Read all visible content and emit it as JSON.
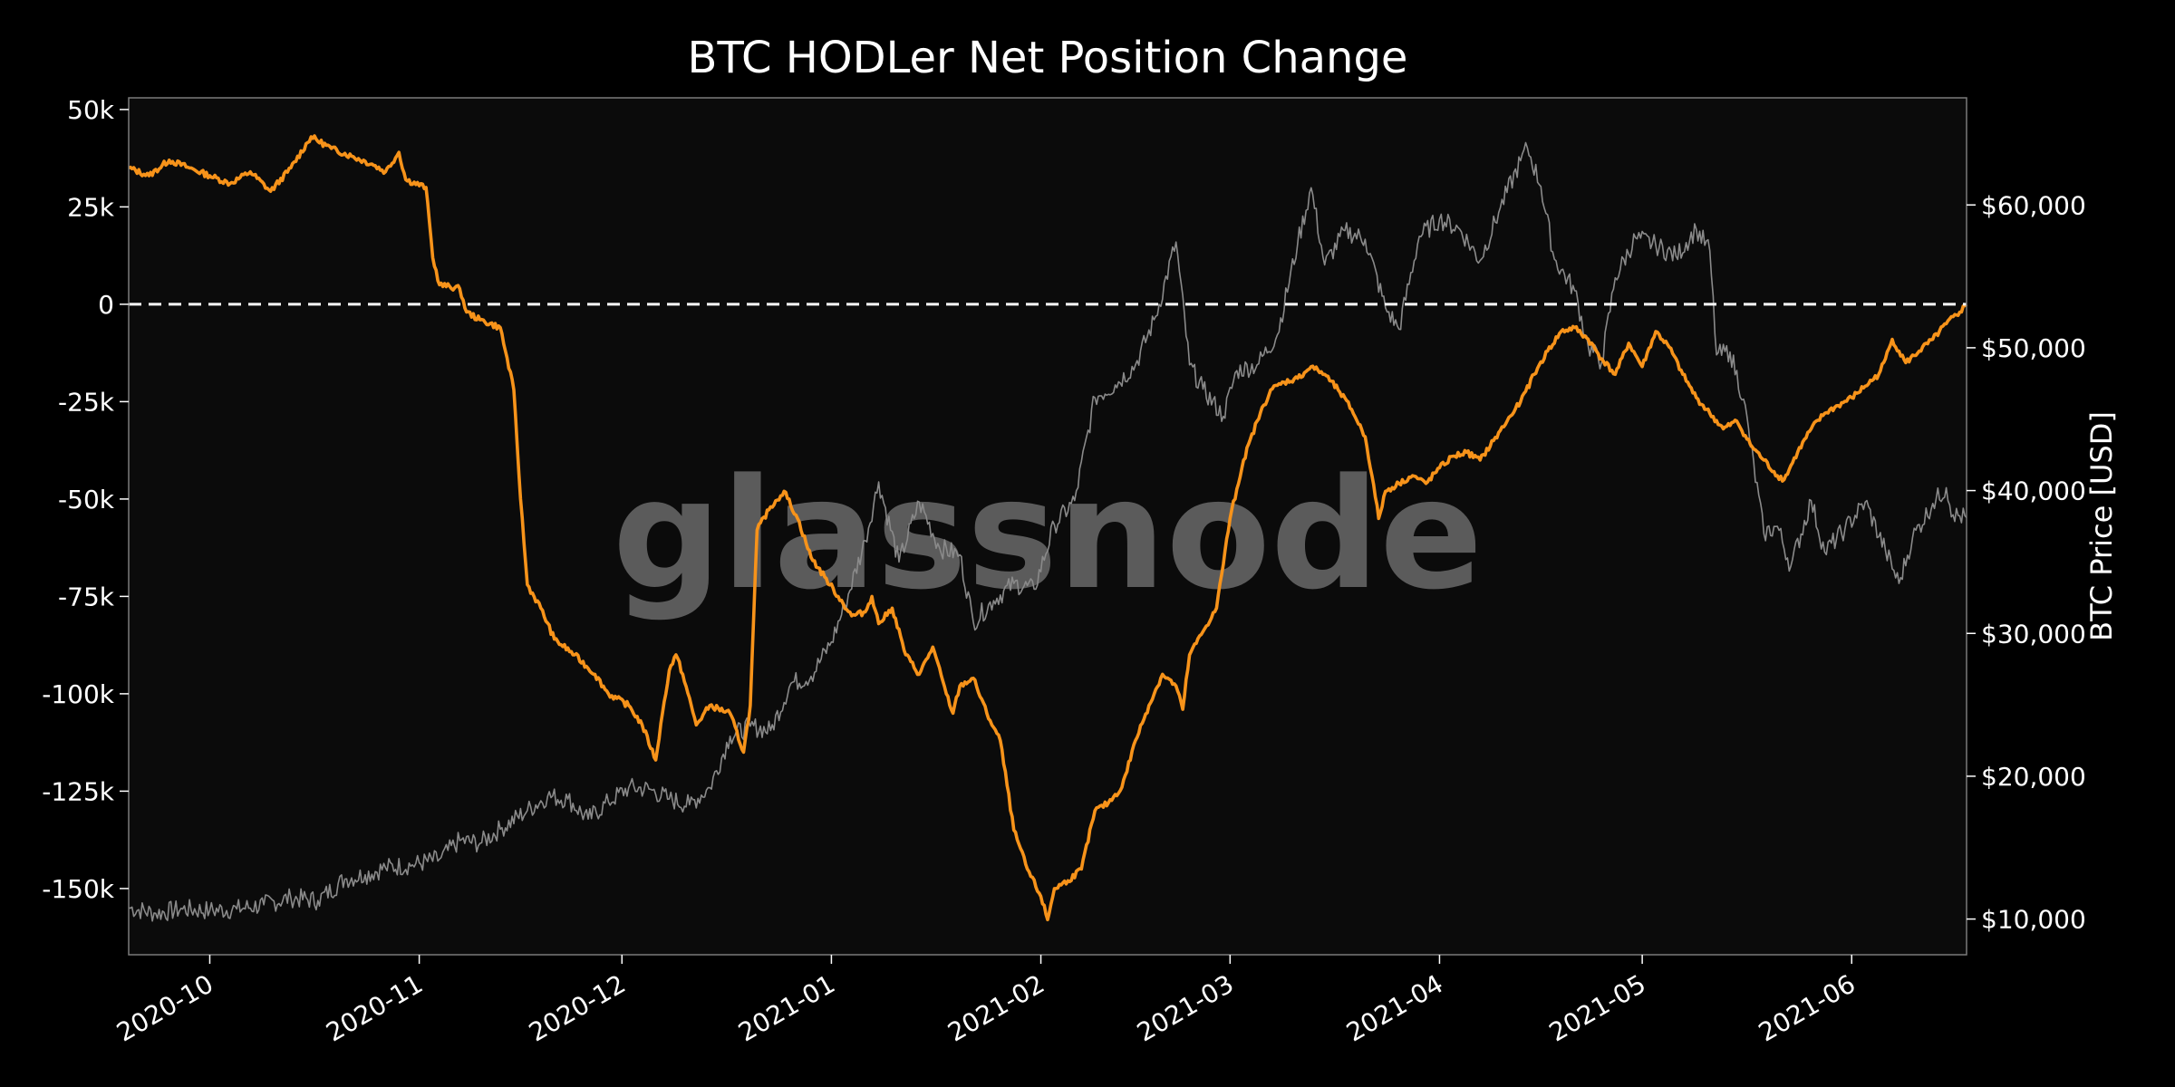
{
  "colors": {
    "background": "#0b0b0b",
    "frame": "#7a7a7a",
    "net_position_line": "#f7931a",
    "price_line": "#8a8a8a",
    "zero_line": "#ffffff",
    "text": "#ffffff"
  },
  "watermark": "glassnode",
  "chart_data": {
    "type": "line",
    "title": "BTC HODLer Net Position Change",
    "xlabel": "",
    "ylabel_left": "",
    "ylabel_right": "BTC Price [USD]",
    "xlim": [
      "2020-09-19",
      "2021-06-18"
    ],
    "ylim_left": [
      -167000,
      53000
    ],
    "ylim_right": [
      7500,
      67500
    ],
    "x_ticks": [
      "2020-10",
      "2020-11",
      "2020-12",
      "2021-01",
      "2021-02",
      "2021-03",
      "2021-04",
      "2021-05",
      "2021-06"
    ],
    "x_tick_dates": [
      "2020-10-01",
      "2020-11-01",
      "2020-12-01",
      "2021-01-01",
      "2021-02-01",
      "2021-03-01",
      "2021-04-01",
      "2021-05-01",
      "2021-06-01"
    ],
    "y_ticks_left": [
      {
        "value": 50000,
        "label": "50k"
      },
      {
        "value": 25000,
        "label": "25k"
      },
      {
        "value": 0,
        "label": "0"
      },
      {
        "value": -25000,
        "label": "-25k"
      },
      {
        "value": -50000,
        "label": "-50k"
      },
      {
        "value": -75000,
        "label": "-75k"
      },
      {
        "value": -100000,
        "label": "-100k"
      },
      {
        "value": -125000,
        "label": "-125k"
      },
      {
        "value": -150000,
        "label": "-150k"
      }
    ],
    "y_ticks_right": [
      {
        "value": 60000,
        "label": "$60,000"
      },
      {
        "value": 50000,
        "label": "$50,000"
      },
      {
        "value": 40000,
        "label": "$40,000"
      },
      {
        "value": 30000,
        "label": "$30,000"
      },
      {
        "value": 20000,
        "label": "$20,000"
      },
      {
        "value": 10000,
        "label": "$10,000"
      }
    ],
    "zero_line": {
      "value": 0,
      "style": "dashed"
    },
    "grid": false,
    "series": [
      {
        "axis": "left",
        "points": [
          [
            "2020-09-19",
            35000
          ],
          [
            "2020-09-22",
            33000
          ],
          [
            "2020-09-25",
            37000
          ],
          [
            "2020-09-28",
            35000
          ],
          [
            "2020-10-01",
            33000
          ],
          [
            "2020-10-04",
            31000
          ],
          [
            "2020-10-07",
            34000
          ],
          [
            "2020-10-10",
            29000
          ],
          [
            "2020-10-13",
            35000
          ],
          [
            "2020-10-16",
            43000
          ],
          [
            "2020-10-19",
            40000
          ],
          [
            "2020-10-22",
            38000
          ],
          [
            "2020-10-25",
            36000
          ],
          [
            "2020-10-27",
            34000
          ],
          [
            "2020-10-29",
            39000
          ],
          [
            "2020-10-30",
            32000
          ],
          [
            "2020-11-02",
            30000
          ],
          [
            "2020-11-03",
            12000
          ],
          [
            "2020-11-04",
            5000
          ],
          [
            "2020-11-07",
            4000
          ],
          [
            "2020-11-08",
            -2000
          ],
          [
            "2020-11-10",
            -4000
          ],
          [
            "2020-11-13",
            -6000
          ],
          [
            "2020-11-15",
            -22000
          ],
          [
            "2020-11-16",
            -50000
          ],
          [
            "2020-11-17",
            -72000
          ],
          [
            "2020-11-19",
            -78000
          ],
          [
            "2020-11-21",
            -86000
          ],
          [
            "2020-11-24",
            -90000
          ],
          [
            "2020-11-27",
            -95000
          ],
          [
            "2020-11-29",
            -100000
          ],
          [
            "2020-12-02",
            -103000
          ],
          [
            "2020-12-04",
            -108000
          ],
          [
            "2020-12-06",
            -117000
          ],
          [
            "2020-12-07",
            -105000
          ],
          [
            "2020-12-08",
            -94000
          ],
          [
            "2020-12-09",
            -90000
          ],
          [
            "2020-12-10",
            -95000
          ],
          [
            "2020-12-12",
            -108000
          ],
          [
            "2020-12-14",
            -103000
          ],
          [
            "2020-12-17",
            -105000
          ],
          [
            "2020-12-19",
            -115000
          ],
          [
            "2020-12-20",
            -103000
          ],
          [
            "2020-12-21",
            -58000
          ],
          [
            "2020-12-23",
            -52000
          ],
          [
            "2020-12-25",
            -48000
          ],
          [
            "2020-12-27",
            -55000
          ],
          [
            "2020-12-29",
            -65000
          ],
          [
            "2020-12-31",
            -70000
          ],
          [
            "2021-01-02",
            -75000
          ],
          [
            "2021-01-04",
            -80000
          ],
          [
            "2021-01-06",
            -79000
          ],
          [
            "2021-01-07",
            -75000
          ],
          [
            "2021-01-08",
            -82000
          ],
          [
            "2021-01-10",
            -78000
          ],
          [
            "2021-01-12",
            -90000
          ],
          [
            "2021-01-14",
            -95000
          ],
          [
            "2021-01-16",
            -88000
          ],
          [
            "2021-01-18",
            -100000
          ],
          [
            "2021-01-19",
            -105000
          ],
          [
            "2021-01-20",
            -98000
          ],
          [
            "2021-01-22",
            -96000
          ],
          [
            "2021-01-24",
            -105000
          ],
          [
            "2021-01-26",
            -112000
          ],
          [
            "2021-01-28",
            -135000
          ],
          [
            "2021-01-30",
            -145000
          ],
          [
            "2021-02-01",
            -152000
          ],
          [
            "2021-02-02",
            -158000
          ],
          [
            "2021-02-03",
            -150000
          ],
          [
            "2021-02-05",
            -148000
          ],
          [
            "2021-02-07",
            -145000
          ],
          [
            "2021-02-09",
            -130000
          ],
          [
            "2021-02-11",
            -128000
          ],
          [
            "2021-02-13",
            -124000
          ],
          [
            "2021-02-15",
            -112000
          ],
          [
            "2021-02-17",
            -103000
          ],
          [
            "2021-02-19",
            -95000
          ],
          [
            "2021-02-21",
            -98000
          ],
          [
            "2021-02-22",
            -104000
          ],
          [
            "2021-02-23",
            -90000
          ],
          [
            "2021-02-25",
            -84000
          ],
          [
            "2021-02-27",
            -78000
          ],
          [
            "2021-03-01",
            -55000
          ],
          [
            "2021-03-03",
            -40000
          ],
          [
            "2021-03-05",
            -30000
          ],
          [
            "2021-03-07",
            -22000
          ],
          [
            "2021-03-09",
            -20000
          ],
          [
            "2021-03-11",
            -19000
          ],
          [
            "2021-03-13",
            -16000
          ],
          [
            "2021-03-15",
            -18000
          ],
          [
            "2021-03-17",
            -22000
          ],
          [
            "2021-03-19",
            -27000
          ],
          [
            "2021-03-21",
            -34000
          ],
          [
            "2021-03-22",
            -44000
          ],
          [
            "2021-03-23",
            -55000
          ],
          [
            "2021-03-24",
            -48000
          ],
          [
            "2021-03-26",
            -46000
          ],
          [
            "2021-03-28",
            -44000
          ],
          [
            "2021-03-30",
            -46000
          ],
          [
            "2021-04-01",
            -42000
          ],
          [
            "2021-04-03",
            -39000
          ],
          [
            "2021-04-05",
            -38000
          ],
          [
            "2021-04-07",
            -40000
          ],
          [
            "2021-04-09",
            -35000
          ],
          [
            "2021-04-11",
            -30000
          ],
          [
            "2021-04-13",
            -25000
          ],
          [
            "2021-04-15",
            -18000
          ],
          [
            "2021-04-17",
            -12000
          ],
          [
            "2021-04-19",
            -7000
          ],
          [
            "2021-04-21",
            -6000
          ],
          [
            "2021-04-23",
            -9000
          ],
          [
            "2021-04-25",
            -14000
          ],
          [
            "2021-04-27",
            -18000
          ],
          [
            "2021-04-29",
            -10000
          ],
          [
            "2021-05-01",
            -16000
          ],
          [
            "2021-05-03",
            -7000
          ],
          [
            "2021-05-05",
            -11000
          ],
          [
            "2021-05-07",
            -18000
          ],
          [
            "2021-05-09",
            -24000
          ],
          [
            "2021-05-11",
            -28000
          ],
          [
            "2021-05-13",
            -32000
          ],
          [
            "2021-05-15",
            -30000
          ],
          [
            "2021-05-17",
            -36000
          ],
          [
            "2021-05-19",
            -40000
          ],
          [
            "2021-05-21",
            -44000
          ],
          [
            "2021-05-22",
            -45000
          ],
          [
            "2021-05-24",
            -38000
          ],
          [
            "2021-05-26",
            -32000
          ],
          [
            "2021-05-28",
            -28000
          ],
          [
            "2021-05-30",
            -26000
          ],
          [
            "2021-06-01",
            -24000
          ],
          [
            "2021-06-03",
            -21000
          ],
          [
            "2021-06-05",
            -18000
          ],
          [
            "2021-06-06",
            -14000
          ],
          [
            "2021-06-07",
            -9000
          ],
          [
            "2021-06-09",
            -15000
          ],
          [
            "2021-06-11",
            -12000
          ],
          [
            "2021-06-13",
            -9000
          ],
          [
            "2021-06-15",
            -5000
          ],
          [
            "2021-06-17",
            -2000
          ],
          [
            "2021-06-18",
            0
          ]
        ]
      },
      {
        "axis": "right",
        "points": [
          [
            "2020-09-19",
            10800
          ],
          [
            "2020-09-23",
            10400
          ],
          [
            "2020-09-27",
            10700
          ],
          [
            "2020-10-01",
            10600
          ],
          [
            "2020-10-05",
            10700
          ],
          [
            "2020-10-09",
            11000
          ],
          [
            "2020-10-13",
            11500
          ],
          [
            "2020-10-17",
            11300
          ],
          [
            "2020-10-21",
            12800
          ],
          [
            "2020-10-24",
            13100
          ],
          [
            "2020-10-27",
            13600
          ],
          [
            "2020-10-31",
            13800
          ],
          [
            "2020-11-04",
            14200
          ],
          [
            "2020-11-07",
            15500
          ],
          [
            "2020-11-10",
            15300
          ],
          [
            "2020-11-13",
            16300
          ],
          [
            "2020-11-17",
            17600
          ],
          [
            "2020-11-20",
            18600
          ],
          [
            "2020-11-23",
            18400
          ],
          [
            "2020-11-26",
            17000
          ],
          [
            "2020-11-29",
            18200
          ],
          [
            "2020-12-02",
            19200
          ],
          [
            "2020-12-05",
            19100
          ],
          [
            "2020-12-08",
            18400
          ],
          [
            "2020-12-11",
            18000
          ],
          [
            "2020-12-14",
            19200
          ],
          [
            "2020-12-17",
            22800
          ],
          [
            "2020-12-20",
            23500
          ],
          [
            "2020-12-23",
            23200
          ],
          [
            "2020-12-26",
            26500
          ],
          [
            "2020-12-29",
            27000
          ],
          [
            "2021-01-01",
            29400
          ],
          [
            "2021-01-03",
            32000
          ],
          [
            "2021-01-06",
            36500
          ],
          [
            "2021-01-08",
            40600
          ],
          [
            "2021-01-11",
            35000
          ],
          [
            "2021-01-14",
            39200
          ],
          [
            "2021-01-17",
            36000
          ],
          [
            "2021-01-20",
            35500
          ],
          [
            "2021-01-22",
            30800
          ],
          [
            "2021-01-25",
            32300
          ],
          [
            "2021-01-28",
            33500
          ],
          [
            "2021-01-31",
            33100
          ],
          [
            "2021-02-03",
            37600
          ],
          [
            "2021-02-06",
            39300
          ],
          [
            "2021-02-09",
            46500
          ],
          [
            "2021-02-12",
            47400
          ],
          [
            "2021-02-15",
            48800
          ],
          [
            "2021-02-18",
            52200
          ],
          [
            "2021-02-21",
            57400
          ],
          [
            "2021-02-23",
            48800
          ],
          [
            "2021-02-25",
            47100
          ],
          [
            "2021-02-28",
            45200
          ],
          [
            "2021-03-02",
            48400
          ],
          [
            "2021-03-05",
            48800
          ],
          [
            "2021-03-08",
            50900
          ],
          [
            "2021-03-11",
            57300
          ],
          [
            "2021-03-13",
            61200
          ],
          [
            "2021-03-15",
            55800
          ],
          [
            "2021-03-18",
            58200
          ],
          [
            "2021-03-21",
            57600
          ],
          [
            "2021-03-24",
            52800
          ],
          [
            "2021-03-26",
            51300
          ],
          [
            "2021-03-29",
            57800
          ],
          [
            "2021-04-01",
            59000
          ],
          [
            "2021-04-04",
            58300
          ],
          [
            "2021-04-07",
            56100
          ],
          [
            "2021-04-10",
            59800
          ],
          [
            "2021-04-13",
            63100
          ],
          [
            "2021-04-14",
            64000
          ],
          [
            "2021-04-16",
            61300
          ],
          [
            "2021-04-18",
            56200
          ],
          [
            "2021-04-21",
            54000
          ],
          [
            "2021-04-23",
            50100
          ],
          [
            "2021-04-25",
            49000
          ],
          [
            "2021-04-27",
            54900
          ],
          [
            "2021-04-30",
            57700
          ],
          [
            "2021-05-03",
            57200
          ],
          [
            "2021-05-06",
            56400
          ],
          [
            "2021-05-09",
            58300
          ],
          [
            "2021-05-11",
            56800
          ],
          [
            "2021-05-12",
            49500
          ],
          [
            "2021-05-14",
            49700
          ],
          [
            "2021-05-16",
            46400
          ],
          [
            "2021-05-19",
            37000
          ],
          [
            "2021-05-21",
            37500
          ],
          [
            "2021-05-23",
            34700
          ],
          [
            "2021-05-26",
            39300
          ],
          [
            "2021-05-28",
            35700
          ],
          [
            "2021-05-31",
            37300
          ],
          [
            "2021-06-03",
            39200
          ],
          [
            "2021-06-06",
            35800
          ],
          [
            "2021-06-08",
            33500
          ],
          [
            "2021-06-10",
            36700
          ],
          [
            "2021-06-13",
            39100
          ],
          [
            "2021-06-15",
            40200
          ],
          [
            "2021-06-16",
            38300
          ],
          [
            "2021-06-18",
            38100
          ]
        ]
      }
    ]
  }
}
